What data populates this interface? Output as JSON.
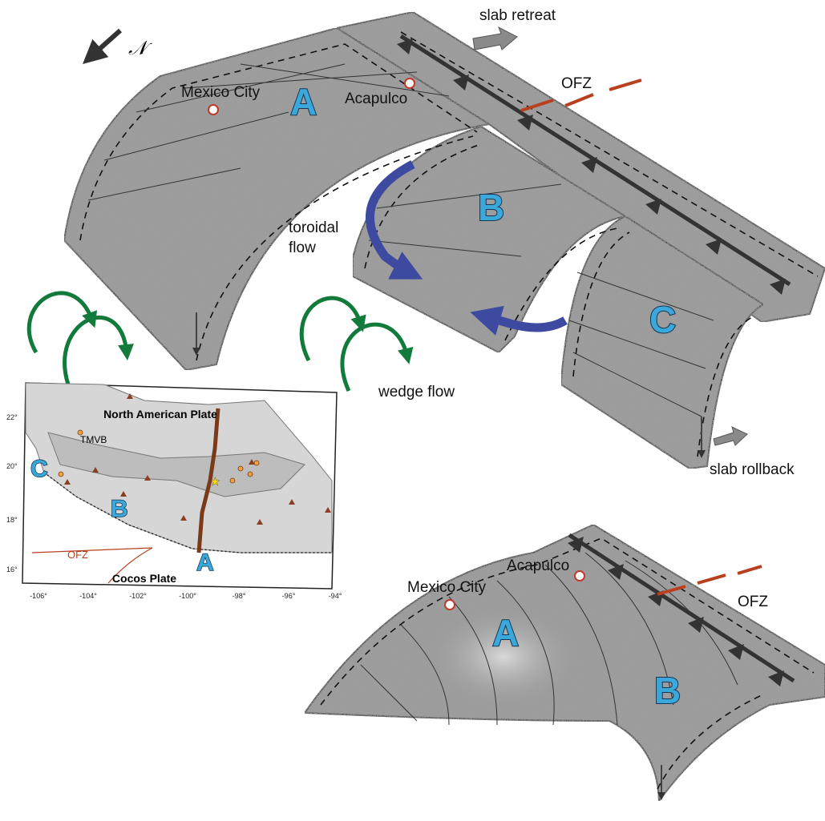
{
  "north_arrow": {
    "label": "𝒩"
  },
  "upper_model": {
    "slab_retreat": "slab retreat",
    "ofz": "OFZ",
    "cities": [
      "Mexico City",
      "Acapulco"
    ],
    "segments": [
      "A",
      "B",
      "C"
    ],
    "toroidal_flow": [
      "toroidal",
      "flow"
    ],
    "wedge_flow": "wedge flow",
    "slab_rollback": "slab rollback"
  },
  "map": {
    "north_american_plate": "North American Plate",
    "tmvb": "TMVB",
    "segments": [
      "C",
      "B",
      "A"
    ],
    "ofz": "OFZ",
    "cocos_plate": "Cocos Plate",
    "lat_labels": [
      "22°",
      "20°",
      "18°",
      "16°"
    ],
    "lon_labels": [
      "-106°",
      "-104°",
      "-102°",
      "-100°",
      "-98°",
      "-96°",
      "-94°"
    ]
  },
  "lower_model": {
    "cities": [
      "Mexico City",
      "Acapulco"
    ],
    "segments": [
      "A",
      "B"
    ],
    "ofz": "OFZ"
  }
}
